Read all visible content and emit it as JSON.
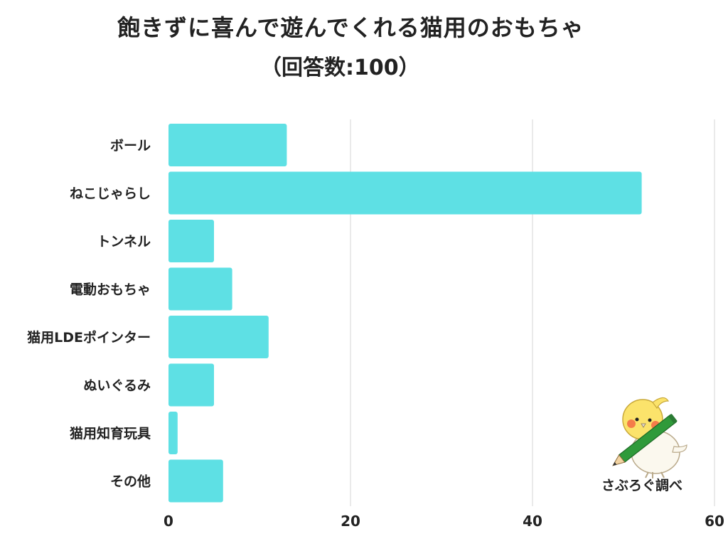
{
  "header": {
    "title": "飽きずに喜んで遊んでくれる猫用のおもちゃ",
    "subtitle": "（回答数:100）"
  },
  "credit": {
    "text": "さぶろぐ調べ"
  },
  "colors": {
    "bar": "#5ee0e4",
    "grid": "#dddddd",
    "text": "#222222"
  },
  "chart_data": {
    "type": "bar",
    "orientation": "horizontal",
    "title": "飽きずに喜んで遊んでくれる猫用のおもちゃ",
    "subtitle": "（回答数:100）",
    "categories": [
      "ボール",
      "ねこじゃらし",
      "トンネル",
      "電動おもちゃ",
      "猫用LDEポインター",
      "ぬいぐるみ",
      "猫用知育玩具",
      "その他"
    ],
    "values": [
      13,
      52,
      5,
      7,
      11,
      5,
      1,
      6
    ],
    "xlim": [
      0,
      60
    ],
    "xticks": [
      0,
      20,
      40,
      60
    ],
    "grid": true,
    "xlabel": "",
    "ylabel": ""
  }
}
